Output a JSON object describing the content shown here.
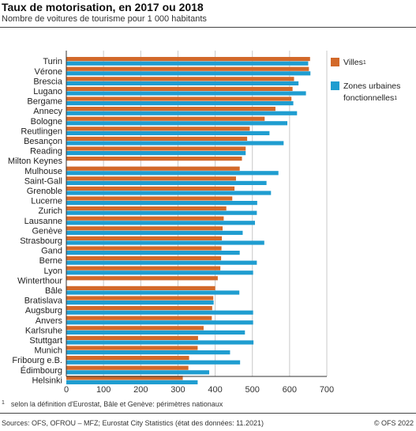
{
  "header": {
    "title": "Taux de motorisation, en 2017 ou 2018",
    "subtitle": "Nombre de voitures de tourisme pour 1 000 habitants"
  },
  "footer": {
    "footnote_mark": "1",
    "footnote": "selon la définition d'Eurostat, Bâle et Genève: périmètres nationaux",
    "source": "Sources: OFS, OFROU – MFZ; Eurostat City Statistics (état des données: 11.2021)",
    "copyright": "© OFS 2022"
  },
  "colors": {
    "villes": "#d2692a",
    "zones": "#1f9dd0",
    "grid": "#c8c8c8",
    "axis": "#333333"
  },
  "chart_data": {
    "type": "bar",
    "orientation": "horizontal",
    "categories": [
      "Turin",
      "Vérone",
      "Brescia",
      "Lugano",
      "Bergame",
      "Annecy",
      "Bologne",
      "Reutlingen",
      "Besançon",
      "Reading",
      "Milton Keynes",
      "Mulhouse",
      "Saint-Gall",
      "Grenoble",
      "Lucerne",
      "Zurich",
      "Lausanne",
      "Genève",
      "Strasbourg",
      "Gand",
      "Berne",
      "Lyon",
      "Winterthour",
      "Bâle",
      "Bratislava",
      "Augsburg",
      "Anvers",
      "Karlsruhe",
      "Stuttgart",
      "Munich",
      "Fribourg e.B.",
      "Édimbourg",
      "Helsinki"
    ],
    "series": [
      {
        "name": "Villes",
        "legend_sup": "1",
        "values": [
          655,
          652,
          612,
          608,
          605,
          562,
          533,
          493,
          486,
          482,
          472,
          466,
          456,
          452,
          446,
          430,
          423,
          420,
          418,
          417,
          416,
          414,
          407,
          400,
          395,
          392,
          391,
          369,
          354,
          353,
          330,
          328,
          313
        ]
      },
      {
        "name": "Zones urbaines fonctionnelles",
        "legend_sup": "1",
        "values": [
          650,
          656,
          624,
          644,
          610,
          620,
          594,
          546,
          584,
          482,
          null,
          570,
          538,
          550,
          513,
          512,
          507,
          474,
          532,
          466,
          512,
          502,
          null,
          465,
          396,
          502,
          502,
          480,
          503,
          440,
          467,
          384,
          353
        ]
      }
    ],
    "xlim": [
      0,
      700
    ],
    "xticks": [
      0,
      100,
      200,
      300,
      400,
      500,
      600,
      700
    ],
    "grid": true,
    "legend_position": "right"
  }
}
